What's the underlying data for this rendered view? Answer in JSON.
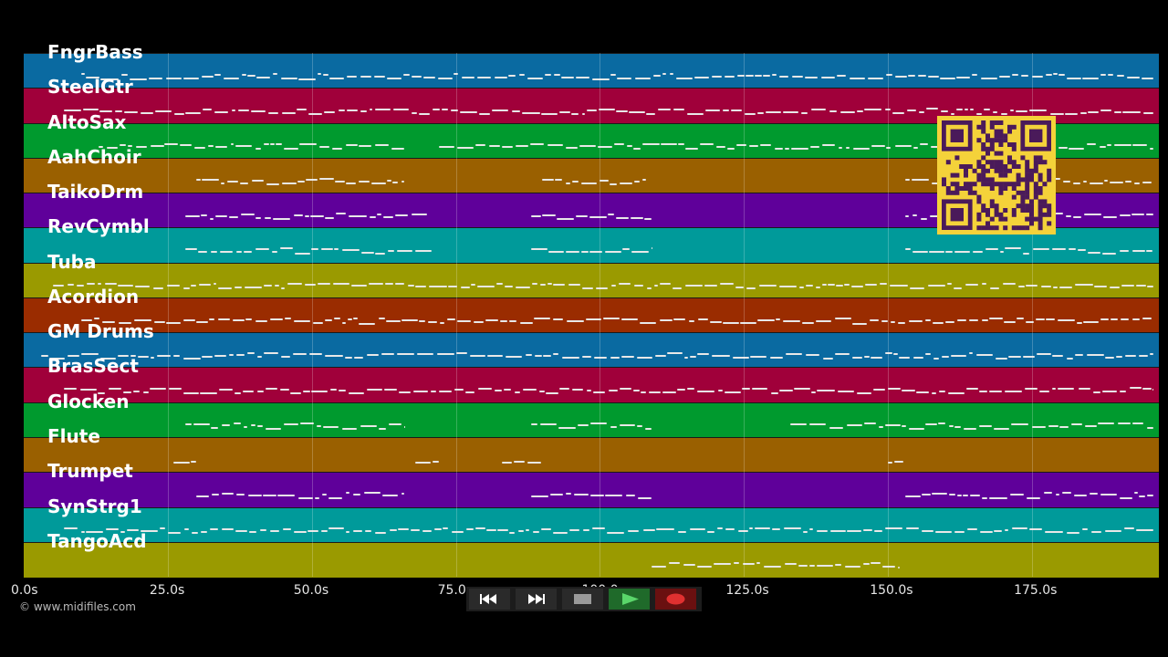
{
  "tracks": [
    {
      "name": "FngrBass",
      "color": "#0a6aa1"
    },
    {
      "name": "SteelGtr",
      "color": "#a0003a"
    },
    {
      "name": "AltoSax",
      "color": "#009a2e"
    },
    {
      "name": "AahChoir",
      "color": "#9a6000"
    },
    {
      "name": "TaikoDrm",
      "color": "#5f009a"
    },
    {
      "name": "RevCymbl",
      "color": "#009a9a"
    },
    {
      "name": "Tuba",
      "color": "#9a9a00"
    },
    {
      "name": "Acordion",
      "color": "#9a2c00"
    },
    {
      "name": "GM Drums",
      "color": "#0a6aa1"
    },
    {
      "name": "BrasSect",
      "color": "#a0003a"
    },
    {
      "name": "Glocken",
      "color": "#009a2e"
    },
    {
      "name": "Flute",
      "color": "#9a6000"
    },
    {
      "name": "Trumpet",
      "color": "#5f009a"
    },
    {
      "name": "SynStrg1",
      "color": "#009a9a"
    },
    {
      "name": "TangoAcd",
      "color": "#9a9a00"
    }
  ],
  "timeline": {
    "max_seconds": 197,
    "ticks": [
      "0.0s",
      "25.0s",
      "50.0s",
      "75.0s",
      "100.0s",
      "125.0s",
      "150.0s",
      "175.0s"
    ],
    "tick_values": [
      0,
      25,
      50,
      75,
      100,
      125,
      150,
      175
    ]
  },
  "copyright": "© www.midifiles.com",
  "qr_color": "#f4d23a",
  "qr_dark": "#4a1a5a",
  "transport": {
    "buttons": [
      {
        "id": "rewind",
        "icon": "rewind-icon"
      },
      {
        "id": "fast-forward",
        "icon": "fast-forward-icon"
      },
      {
        "id": "stop",
        "icon": "stop-icon"
      },
      {
        "id": "play",
        "icon": "play-icon"
      },
      {
        "id": "record",
        "icon": "record-icon"
      }
    ]
  },
  "note_segments": [
    [
      [
        10,
        196
      ]
    ],
    [
      [
        7,
        196
      ]
    ],
    [
      [
        13,
        66
      ],
      [
        72,
        196
      ]
    ],
    [
      [
        30,
        66
      ],
      [
        90,
        108
      ],
      [
        153,
        196
      ]
    ],
    [
      [
        28,
        70
      ],
      [
        88,
        109
      ],
      [
        153,
        196
      ]
    ],
    [
      [
        28,
        71
      ],
      [
        88,
        109
      ],
      [
        153,
        196
      ]
    ],
    [
      [
        5,
        196
      ]
    ],
    [
      [
        10,
        196
      ]
    ],
    [
      [
        3,
        196
      ]
    ],
    [
      [
        7,
        196
      ]
    ],
    [
      [
        28,
        66
      ],
      [
        88,
        109
      ],
      [
        133,
        196
      ]
    ],
    [
      [
        26,
        30
      ],
      [
        68,
        72
      ],
      [
        83,
        90
      ],
      [
        150,
        153
      ]
    ],
    [
      [
        30,
        66
      ],
      [
        88,
        109
      ],
      [
        153,
        196
      ]
    ],
    [
      [
        7,
        196
      ]
    ],
    [
      [
        109,
        152
      ]
    ]
  ]
}
